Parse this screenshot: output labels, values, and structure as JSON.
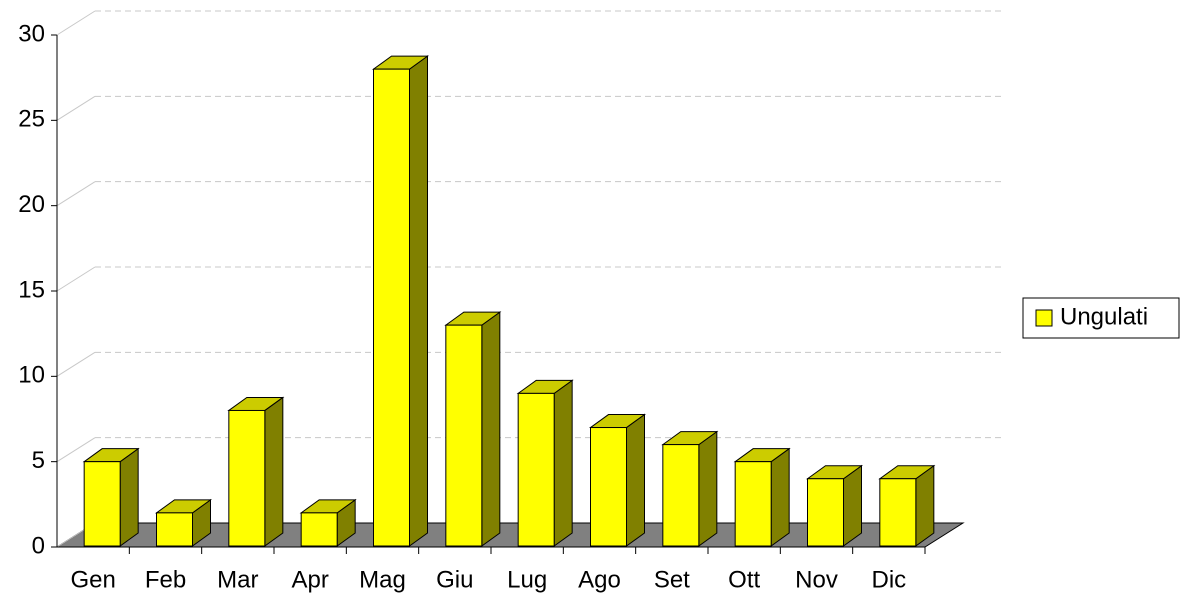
{
  "chart_data": {
    "type": "bar3d",
    "categories": [
      "Gen",
      "Feb",
      "Mar",
      "Apr",
      "Mag",
      "Giu",
      "Lug",
      "Ago",
      "Set",
      "Ott",
      "Nov",
      "Dic"
    ],
    "series": [
      {
        "name": "Ungulati",
        "color": "#ffff00",
        "values": [
          5,
          2,
          8,
          2,
          28,
          13,
          9,
          7,
          6,
          5,
          4,
          4
        ]
      }
    ],
    "ylim": [
      0,
      30
    ],
    "yticks": [
      0,
      5,
      10,
      15,
      20,
      25,
      30
    ],
    "grid": true,
    "legend": "right"
  }
}
